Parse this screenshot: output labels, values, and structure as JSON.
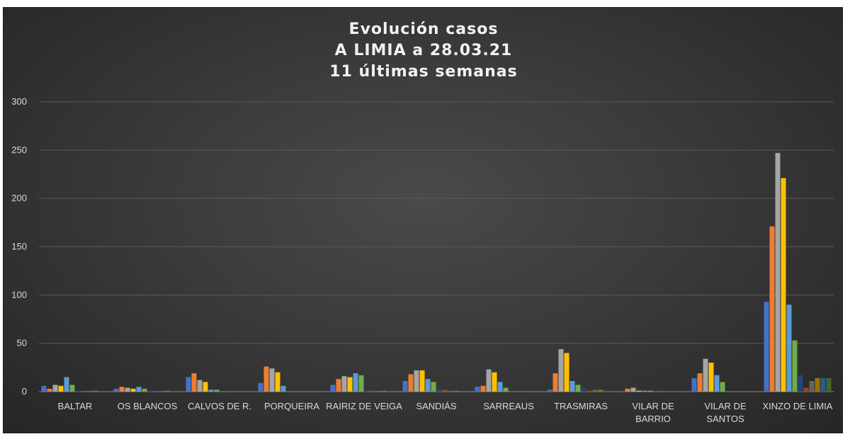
{
  "chart_data": {
    "type": "bar",
    "title_lines": [
      "Evolución casos",
      "A LIMIA a 28.03.21",
      "11 últimas semanas"
    ],
    "ylim": [
      0,
      300
    ],
    "yticks": [
      0,
      50,
      100,
      150,
      200,
      250,
      300
    ],
    "grid": true,
    "legend": "none",
    "categories": [
      [
        "BALTAR"
      ],
      [
        "OS BLANCOS"
      ],
      [
        "CALVOS DE R."
      ],
      [
        "PORQUEIRA"
      ],
      [
        "RAIRIZ DE VEIGA"
      ],
      [
        "SANDIÁS"
      ],
      [
        "SARREAUS"
      ],
      [
        "TRASMIRAS"
      ],
      [
        "VILAR DE",
        "BARRIO"
      ],
      [
        "VILAR DE",
        "SANTOS"
      ],
      [
        "XINZO DE LIMIA"
      ]
    ],
    "series": [
      {
        "color": "#4472C4",
        "values": [
          6,
          3,
          15,
          9,
          7,
          11,
          5,
          2,
          0,
          14,
          93
        ]
      },
      {
        "color": "#ED7D31",
        "values": [
          3,
          5,
          19,
          26,
          13,
          18,
          6,
          19,
          3,
          19,
          171
        ]
      },
      {
        "color": "#A5A5A5",
        "values": [
          7,
          4,
          12,
          24,
          16,
          22,
          23,
          44,
          4,
          34,
          247
        ]
      },
      {
        "color": "#FFC000",
        "values": [
          6,
          3,
          10,
          20,
          15,
          22,
          20,
          40,
          1,
          30,
          221
        ]
      },
      {
        "color": "#5B9BD5",
        "values": [
          15,
          5,
          2,
          6,
          19,
          13,
          10,
          11,
          1,
          17,
          90
        ]
      },
      {
        "color": "#70AD47",
        "values": [
          7,
          3,
          2,
          0,
          17,
          10,
          4,
          7,
          1,
          10,
          53
        ]
      },
      {
        "color": "#264478",
        "values": [
          1,
          1,
          0,
          0,
          2,
          3,
          0,
          4,
          0,
          0,
          17
        ]
      },
      {
        "color": "#9E480E",
        "values": [
          0,
          0,
          0,
          0,
          1,
          2,
          0,
          1,
          1,
          0,
          4
        ]
      },
      {
        "color": "#636363",
        "values": [
          1,
          1,
          0,
          0,
          1,
          1,
          0,
          2,
          0,
          0,
          11
        ]
      },
      {
        "color": "#997300",
        "values": [
          1,
          1,
          0,
          0,
          1,
          1,
          0,
          2,
          0,
          0,
          14
        ]
      },
      {
        "color": "#255E91",
        "values": [
          0,
          1,
          0,
          0,
          1,
          0,
          0,
          1,
          0,
          0,
          14
        ]
      },
      {
        "color": "#43682B",
        "values": [
          0,
          1,
          0,
          0,
          1,
          0,
          0,
          1,
          0,
          0,
          14
        ]
      }
    ]
  }
}
